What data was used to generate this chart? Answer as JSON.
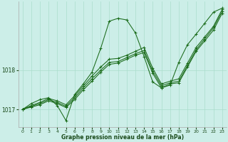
{
  "xlabel": "Graphe pression niveau de la mer (hPa)",
  "bg_color": "#cceee8",
  "grid_color": "#aaddcc",
  "line_color": "#1a6b1a",
  "ylim": [
    1016.55,
    1019.75
  ],
  "xlim": [
    -0.5,
    23.5
  ],
  "yticks": [
    1017,
    1018
  ],
  "ytick_labels": [
    "1017",
    "1018"
  ],
  "xticks": [
    0,
    1,
    2,
    3,
    4,
    5,
    6,
    7,
    8,
    9,
    10,
    11,
    12,
    13,
    14,
    15,
    16,
    17,
    18,
    19,
    20,
    21,
    22,
    23
  ],
  "figsize": [
    3.2,
    2.0
  ],
  "dpi": 100,
  "series": [
    [
      1017.0,
      1017.15,
      1017.25,
      1017.3,
      1017.1,
      1016.72,
      1017.38,
      1017.65,
      1017.95,
      1018.55,
      1019.25,
      1019.32,
      1019.28,
      1018.95,
      1018.35,
      1017.7,
      1017.55,
      1017.62,
      1018.2,
      1018.65,
      1018.92,
      1019.2,
      1019.48,
      1019.58
    ],
    [
      1017.0,
      1017.1,
      1017.18,
      1017.28,
      1017.22,
      1017.12,
      1017.35,
      1017.6,
      1017.85,
      1018.08,
      1018.28,
      1018.3,
      1018.38,
      1018.48,
      1018.58,
      1018.05,
      1017.65,
      1017.72,
      1017.78,
      1018.18,
      1018.58,
      1018.85,
      1019.12,
      1019.55
    ],
    [
      1017.0,
      1017.08,
      1017.15,
      1017.25,
      1017.18,
      1017.08,
      1017.3,
      1017.55,
      1017.78,
      1018.0,
      1018.2,
      1018.22,
      1018.32,
      1018.42,
      1018.5,
      1017.98,
      1017.6,
      1017.68,
      1017.72,
      1018.12,
      1018.52,
      1018.8,
      1019.08,
      1019.5
    ],
    [
      1017.0,
      1017.06,
      1017.12,
      1017.22,
      1017.15,
      1017.05,
      1017.25,
      1017.5,
      1017.72,
      1017.95,
      1018.15,
      1018.18,
      1018.28,
      1018.38,
      1018.45,
      1017.92,
      1017.55,
      1017.65,
      1017.68,
      1018.08,
      1018.48,
      1018.75,
      1019.02,
      1019.45
    ]
  ]
}
